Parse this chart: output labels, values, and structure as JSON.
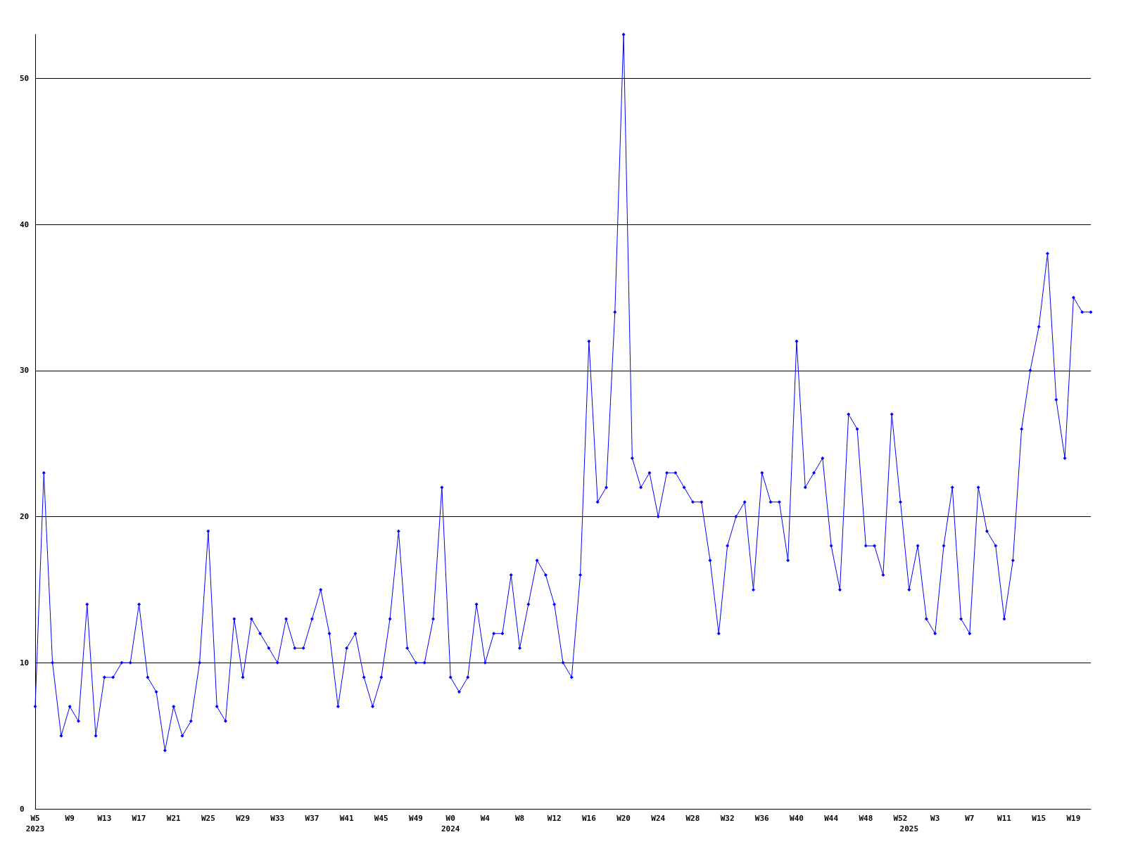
{
  "chart_data": {
    "type": "line",
    "categories": [
      "W5\n2023",
      null,
      null,
      null,
      "W9",
      null,
      null,
      null,
      "W13",
      null,
      null,
      null,
      "W17",
      null,
      null,
      null,
      "W21",
      null,
      null,
      null,
      "W25",
      null,
      null,
      null,
      "W29",
      null,
      null,
      null,
      "W33",
      null,
      null,
      null,
      "W37",
      null,
      null,
      null,
      "W41",
      null,
      null,
      null,
      "W45",
      null,
      null,
      null,
      "W49",
      null,
      null,
      null,
      "W0\n2024",
      null,
      null,
      null,
      "W4",
      null,
      null,
      null,
      "W8",
      null,
      null,
      null,
      "W12",
      null,
      null,
      null,
      "W16",
      null,
      null,
      null,
      "W20",
      null,
      null,
      null,
      "W24",
      null,
      null,
      null,
      "W28",
      null,
      null,
      null,
      "W32",
      null,
      null,
      null,
      "W36",
      null,
      null,
      null,
      "W40",
      null,
      null,
      null,
      "W44",
      null,
      null,
      null,
      "W48",
      null,
      null,
      null,
      "W52",
      "\n2025",
      null,
      null,
      "W3",
      null,
      null,
      null,
      "W7",
      null,
      null,
      null,
      "W11",
      null,
      null,
      null,
      "W15",
      null,
      null,
      null,
      "W19",
      null,
      null
    ],
    "series": [
      {
        "color": "#0000ff",
        "values": [
          7,
          23,
          10,
          5,
          7,
          6,
          14,
          5,
          9,
          9,
          10,
          10,
          14,
          9,
          8,
          4,
          7,
          5,
          6,
          10,
          19,
          7,
          6,
          13,
          9,
          13,
          12,
          11,
          10,
          13,
          11,
          11,
          13,
          15,
          12,
          7,
          11,
          12,
          9,
          7,
          9,
          13,
          19,
          11,
          10,
          10,
          13,
          22,
          9,
          8,
          9,
          14,
          10,
          12,
          12,
          16,
          11,
          14,
          17,
          16,
          14,
          10,
          9,
          16,
          32,
          21,
          22,
          34,
          53,
          24,
          22,
          23,
          20,
          23,
          23,
          22,
          21,
          21,
          17,
          12,
          18,
          20,
          21,
          15,
          23,
          21,
          21,
          17,
          32,
          22,
          23,
          24,
          18,
          15,
          27,
          26,
          18,
          18,
          16,
          27,
          21,
          15,
          18,
          13,
          12,
          18,
          22,
          13,
          12,
          22,
          19,
          18,
          13,
          17,
          26,
          30,
          33,
          38,
          28,
          24,
          35,
          34,
          34
        ]
      }
    ],
    "ylim": [
      0,
      53
    ],
    "yticks": [
      0,
      10,
      20,
      30,
      40,
      50
    ],
    "grid": "y",
    "marker": "diamond",
    "line_style": "solid"
  }
}
